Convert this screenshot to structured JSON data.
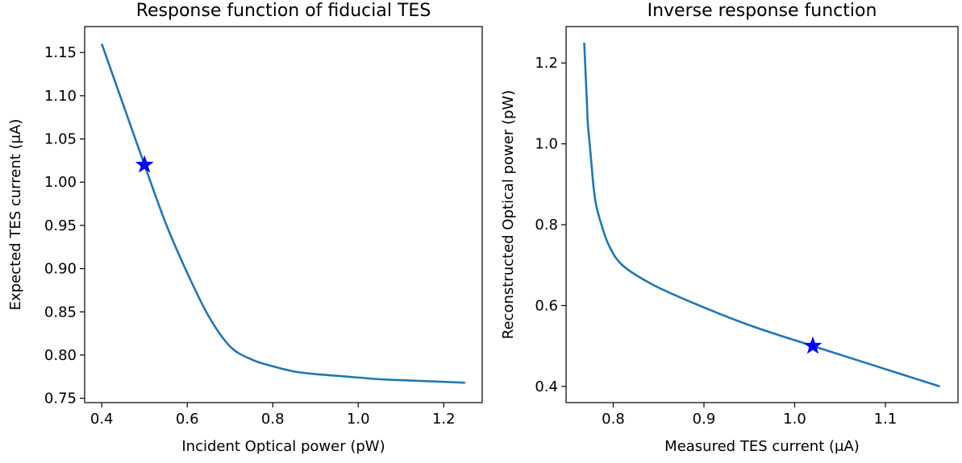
{
  "chart_data": [
    {
      "type": "line",
      "title": "Response function of fiducial TES",
      "xlabel": "Incident Optical power (pW)",
      "ylabel": "Expected TES current (μA)",
      "xlim": [
        0.36,
        1.29
      ],
      "ylim": [
        0.745,
        1.18
      ],
      "x_ticks": [
        0.4,
        0.6,
        0.8,
        1.0,
        1.2
      ],
      "x_tick_labels": [
        "0.4",
        "0.6",
        "0.8",
        "1.0",
        "1.2"
      ],
      "y_ticks": [
        0.75,
        0.8,
        0.85,
        0.9,
        0.95,
        1.0,
        1.05,
        1.1,
        1.15
      ],
      "y_tick_labels": [
        "0.75",
        "0.80",
        "0.85",
        "0.90",
        "0.95",
        "1.00",
        "1.05",
        "1.10",
        "1.15"
      ],
      "grid": false,
      "series": [
        {
          "color": "#1f77b4",
          "x": [
            0.4,
            0.45,
            0.5,
            0.55,
            0.6,
            0.65,
            0.7,
            0.75,
            0.8,
            0.85,
            0.9,
            0.95,
            1.0,
            1.05,
            1.1,
            1.15,
            1.2,
            1.25
          ],
          "y": [
            1.16,
            1.09,
            1.02,
            0.952,
            0.895,
            0.845,
            0.81,
            0.795,
            0.787,
            0.781,
            0.778,
            0.776,
            0.774,
            0.772,
            0.771,
            0.77,
            0.769,
            0.768
          ]
        }
      ],
      "markers": [
        {
          "shape": "star",
          "color": "#0000ff",
          "x": 0.5,
          "y": 1.02
        }
      ]
    },
    {
      "type": "line",
      "title": "Inverse response function",
      "xlabel": "Measured TES current (μA)",
      "ylabel": "Reconstructed Optical power (pW)",
      "xlim": [
        0.748,
        1.18
      ],
      "ylim": [
        0.36,
        1.29
      ],
      "x_ticks": [
        0.8,
        0.9,
        1.0,
        1.1
      ],
      "x_tick_labels": [
        "0.8",
        "0.9",
        "1.0",
        "1.1"
      ],
      "y_ticks": [
        0.4,
        0.6,
        0.8,
        1.0,
        1.2
      ],
      "y_tick_labels": [
        "0.4",
        "0.6",
        "0.8",
        "1.0",
        "1.2"
      ],
      "grid": false,
      "series": [
        {
          "color": "#1f77b4",
          "x": [
            0.768,
            0.769,
            0.77,
            0.771,
            0.772,
            0.774,
            0.776,
            0.778,
            0.781,
            0.787,
            0.795,
            0.81,
            0.845,
            0.895,
            0.952,
            1.02,
            1.09,
            1.16
          ],
          "y": [
            1.25,
            1.2,
            1.15,
            1.1,
            1.05,
            1.0,
            0.95,
            0.9,
            0.85,
            0.8,
            0.75,
            0.7,
            0.65,
            0.6,
            0.55,
            0.5,
            0.45,
            0.4
          ]
        }
      ],
      "markers": [
        {
          "shape": "star",
          "color": "#0000ff",
          "x": 1.02,
          "y": 0.5
        }
      ]
    }
  ]
}
